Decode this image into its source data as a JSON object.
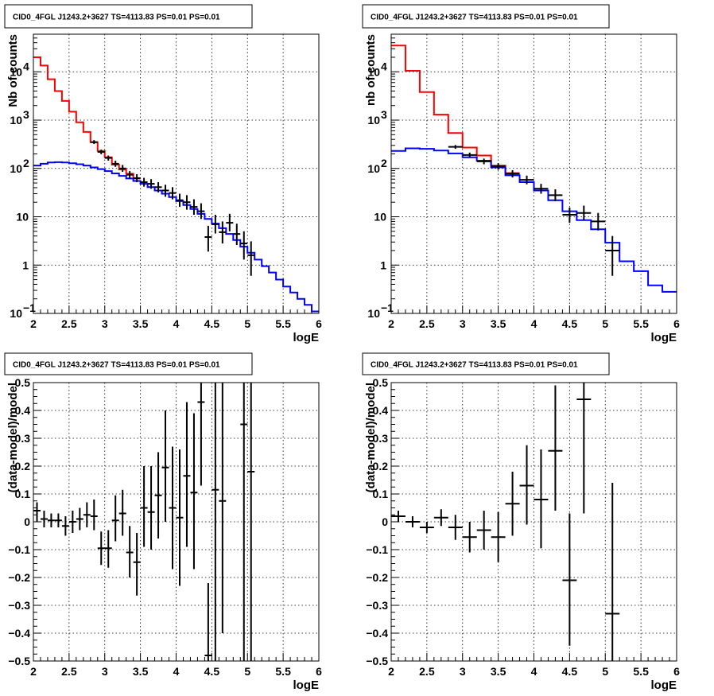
{
  "chart_data": [
    {
      "type": "line",
      "title": "CID0_4FGL J1243.2+3627 TS=4113.83 PS=0.01 PS=0.01",
      "xlabel": "logE",
      "ylabel": "Nb of counts",
      "xlim": [
        2,
        6
      ],
      "ylim": [
        0.1,
        60000
      ],
      "yscale": "log",
      "grid": true,
      "x_ticks": [
        "2",
        "2.5",
        "3",
        "3.5",
        "4",
        "4.5",
        "5",
        "5.5",
        "6"
      ],
      "y_ticks": [
        {
          "value": 0.1,
          "label": "10",
          "exp": "−1"
        },
        {
          "value": 1,
          "label": "1",
          "exp": ""
        },
        {
          "value": 10,
          "label": "10",
          "exp": ""
        },
        {
          "value": 100,
          "label": "10",
          "exp": "2"
        },
        {
          "value": 1000,
          "label": "10",
          "exp": "3"
        },
        {
          "value": 10000,
          "label": "10",
          "exp": "4"
        }
      ],
      "bin_edges": [
        2.0,
        2.1,
        2.2,
        2.3,
        2.4,
        2.5,
        2.6,
        2.7,
        2.8,
        2.9,
        3.0,
        3.1,
        3.2,
        3.3,
        3.4,
        3.5,
        3.6,
        3.7,
        3.8,
        3.9,
        4.0,
        4.1,
        4.2,
        4.3,
        4.4,
        4.5,
        4.6,
        4.7,
        4.8,
        4.9,
        5.0,
        5.1,
        5.2,
        5.3,
        5.4,
        5.5,
        5.6,
        5.7,
        5.8,
        5.9,
        6.0
      ],
      "series": [
        {
          "color": "#ff0000",
          "style": "step",
          "x_end": 3.5,
          "values": [
            20000,
            13500,
            7000,
            4000,
            2500,
            1500,
            900,
            570,
            350,
            230,
            170,
            120,
            95,
            78,
            62
          ]
        },
        {
          "color": "#0000ff",
          "style": "step",
          "values": [
            115,
            125,
            133,
            135,
            133,
            128,
            122,
            115,
            105,
            97,
            88,
            79,
            70,
            62,
            55,
            48,
            41,
            35,
            30,
            25.5,
            21,
            17.5,
            14.5,
            11.5,
            9,
            7.2,
            5.8,
            4.4,
            3.3,
            2.4,
            1.8,
            1.3,
            0.95,
            0.7,
            0.5,
            0.36,
            0.27,
            0.2,
            0.15,
            0.11
          ]
        },
        {
          "color": "#000000",
          "style": "points",
          "points": [
            {
              "x": 2.85,
              "y": 350,
              "lo": 320,
              "hi": 385
            },
            {
              "x": 2.95,
              "y": 220,
              "lo": 197,
              "hi": 245
            },
            {
              "x": 3.05,
              "y": 165,
              "lo": 145,
              "hi": 185
            },
            {
              "x": 3.15,
              "y": 125,
              "lo": 108,
              "hi": 145
            },
            {
              "x": 3.25,
              "y": 100,
              "lo": 85,
              "hi": 118
            },
            {
              "x": 3.35,
              "y": 74,
              "lo": 62,
              "hi": 88
            },
            {
              "x": 3.45,
              "y": 63,
              "lo": 52,
              "hi": 76
            },
            {
              "x": 3.55,
              "y": 52,
              "lo": 42,
              "hi": 64
            },
            {
              "x": 3.65,
              "y": 48,
              "lo": 38,
              "hi": 60
            },
            {
              "x": 3.75,
              "y": 41,
              "lo": 32,
              "hi": 52
            },
            {
              "x": 3.85,
              "y": 35,
              "lo": 26,
              "hi": 46
            },
            {
              "x": 3.95,
              "y": 31,
              "lo": 23,
              "hi": 41
            },
            {
              "x": 4.05,
              "y": 22,
              "lo": 16,
              "hi": 30
            },
            {
              "x": 4.15,
              "y": 20,
              "lo": 14,
              "hi": 28
            },
            {
              "x": 4.25,
              "y": 16,
              "lo": 11,
              "hi": 23
            },
            {
              "x": 4.35,
              "y": 13,
              "lo": 9,
              "hi": 19
            },
            {
              "x": 4.45,
              "y": 3.8,
              "lo": 1.9,
              "hi": 6.5
            },
            {
              "x": 4.55,
              "y": 7,
              "lo": 4.5,
              "hi": 11
            },
            {
              "x": 4.65,
              "y": 4.8,
              "lo": 2.8,
              "hi": 8
            },
            {
              "x": 4.75,
              "y": 7.5,
              "lo": 5,
              "hi": 11.5
            },
            {
              "x": 4.85,
              "y": 4.4,
              "lo": 2.6,
              "hi": 7.2
            },
            {
              "x": 4.95,
              "y": 2.8,
              "lo": 1.3,
              "hi": 5
            },
            {
              "x": 5.05,
              "y": 1.6,
              "lo": 0.6,
              "hi": 3.1
            }
          ]
        }
      ]
    },
    {
      "type": "line",
      "title": "CID0_4FGL J1243.2+3627 TS=4113.83 PS=0.01 PS=0.01",
      "xlabel": "logE",
      "ylabel": "nb of counts",
      "xlim": [
        2,
        6
      ],
      "ylim": [
        0.1,
        60000
      ],
      "yscale": "log",
      "grid": true,
      "x_ticks": [
        "2",
        "2.5",
        "3",
        "3.5",
        "4",
        "4.5",
        "5",
        "5.5",
        "6"
      ],
      "y_ticks": [
        {
          "value": 0.1,
          "label": "10",
          "exp": "−1"
        },
        {
          "value": 1,
          "label": "1",
          "exp": ""
        },
        {
          "value": 10,
          "label": "10",
          "exp": ""
        },
        {
          "value": 100,
          "label": "10",
          "exp": "2"
        },
        {
          "value": 1000,
          "label": "10",
          "exp": "3"
        },
        {
          "value": 10000,
          "label": "10",
          "exp": "4"
        }
      ],
      "bin_edges": [
        2.0,
        2.2,
        2.4,
        2.6,
        2.8,
        3.0,
        3.2,
        3.4,
        3.6,
        3.8,
        4.0,
        4.2,
        4.4,
        4.6,
        4.8,
        5.0,
        5.2,
        5.4,
        5.6,
        5.8,
        6.0
      ],
      "series": [
        {
          "color": "#ff0000",
          "style": "step",
          "x_end": 3.8,
          "values": [
            35000,
            10500,
            3800,
            1300,
            540,
            270,
            185,
            115,
            80
          ]
        },
        {
          "color": "#0000ff",
          "style": "step",
          "values": [
            230,
            260,
            255,
            235,
            205,
            170,
            145,
            105,
            72,
            52,
            35,
            22,
            13,
            8.5,
            5.5,
            2.9,
            1.2,
            0.75,
            0.38,
            0.28
          ]
        },
        {
          "color": "#000000",
          "style": "points",
          "points": [
            {
              "x": 2.9,
              "y": 280,
              "lo": 255,
              "hi": 305
            },
            {
              "x": 3.1,
              "y": 190,
              "lo": 168,
              "hi": 213
            },
            {
              "x": 3.3,
              "y": 140,
              "lo": 122,
              "hi": 160
            },
            {
              "x": 3.5,
              "y": 110,
              "lo": 94,
              "hi": 128
            },
            {
              "x": 3.7,
              "y": 78,
              "lo": 65,
              "hi": 92
            },
            {
              "x": 3.9,
              "y": 58,
              "lo": 47,
              "hi": 71
            },
            {
              "x": 4.1,
              "y": 38,
              "lo": 30,
              "hi": 48
            },
            {
              "x": 4.3,
              "y": 28,
              "lo": 21,
              "hi": 37
            },
            {
              "x": 4.5,
              "y": 11,
              "lo": 7.5,
              "hi": 15.5
            },
            {
              "x": 4.7,
              "y": 12,
              "lo": 8.5,
              "hi": 17
            },
            {
              "x": 4.9,
              "y": 8,
              "lo": 5.2,
              "hi": 12
            },
            {
              "x": 5.1,
              "y": 2,
              "lo": 0.6,
              "hi": 4
            }
          ]
        }
      ]
    },
    {
      "type": "scatter",
      "title": "CID0_4FGL J1243.2+3627 TS=4113.83 PS=0.01 PS=0.01",
      "xlabel": "logE",
      "ylabel": "(data-model)/model",
      "xlim": [
        2,
        6
      ],
      "ylim": [
        -0.5,
        0.5
      ],
      "grid": true,
      "x_ticks": [
        "2",
        "2.5",
        "3",
        "3.5",
        "4",
        "4.5",
        "5",
        "5.5",
        "6"
      ],
      "y_ticks": [
        "−0.5",
        "−0.4",
        "−0.3",
        "−0.2",
        "−0.1",
        "0",
        "0.1",
        "0.2",
        "0.3",
        "0.4",
        "0.5"
      ],
      "y_tick_values": [
        -0.5,
        -0.4,
        -0.3,
        -0.2,
        -0.1,
        0,
        0.1,
        0.2,
        0.3,
        0.4,
        0.5
      ],
      "bin_halfwidth": 0.05,
      "points": [
        {
          "x": 2.05,
          "y": 0.04,
          "lo": 0.0,
          "hi": 0.07
        },
        {
          "x": 2.15,
          "y": 0.01,
          "lo": -0.02,
          "hi": 0.04
        },
        {
          "x": 2.25,
          "y": 0.005,
          "lo": -0.02,
          "hi": 0.03
        },
        {
          "x": 2.35,
          "y": 0.005,
          "lo": -0.02,
          "hi": 0.03
        },
        {
          "x": 2.45,
          "y": -0.015,
          "lo": -0.05,
          "hi": 0.02
        },
        {
          "x": 2.55,
          "y": 0.0,
          "lo": -0.04,
          "hi": 0.04
        },
        {
          "x": 2.65,
          "y": 0.01,
          "lo": -0.03,
          "hi": 0.05
        },
        {
          "x": 2.75,
          "y": 0.025,
          "lo": -0.02,
          "hi": 0.07
        },
        {
          "x": 2.85,
          "y": 0.02,
          "lo": -0.03,
          "hi": 0.08
        },
        {
          "x": 2.95,
          "y": -0.095,
          "lo": -0.155,
          "hi": -0.035
        },
        {
          "x": 3.05,
          "y": -0.095,
          "lo": -0.165,
          "hi": -0.03
        },
        {
          "x": 3.15,
          "y": 0.005,
          "lo": -0.07,
          "hi": 0.095
        },
        {
          "x": 3.25,
          "y": 0.03,
          "lo": -0.05,
          "hi": 0.115
        },
        {
          "x": 3.35,
          "y": -0.11,
          "lo": -0.2,
          "hi": -0.015
        },
        {
          "x": 3.45,
          "y": -0.145,
          "lo": -0.265,
          "hi": -0.04
        },
        {
          "x": 3.55,
          "y": 0.05,
          "lo": -0.09,
          "hi": 0.2
        },
        {
          "x": 3.65,
          "y": 0.035,
          "lo": -0.1,
          "hi": 0.2
        },
        {
          "x": 3.75,
          "y": 0.095,
          "lo": -0.06,
          "hi": 0.25
        },
        {
          "x": 3.85,
          "y": 0.195,
          "lo": 0.0,
          "hi": 0.4
        },
        {
          "x": 3.95,
          "y": 0.05,
          "lo": -0.17,
          "hi": 0.27
        },
        {
          "x": 4.05,
          "y": 0.015,
          "lo": -0.23,
          "hi": 0.26
        },
        {
          "x": 4.15,
          "y": 0.165,
          "lo": -0.09,
          "hi": 0.43
        },
        {
          "x": 4.25,
          "y": 0.105,
          "lo": -0.17,
          "hi": 0.39
        },
        {
          "x": 4.35,
          "y": 0.43,
          "lo": 0.13,
          "hi": 0.5
        },
        {
          "x": 4.45,
          "y": -0.48,
          "lo": -0.5,
          "hi": -0.22
        },
        {
          "x": 4.55,
          "y": 0.115,
          "lo": -0.5,
          "hi": 0.5
        },
        {
          "x": 4.65,
          "y": 0.075,
          "lo": -0.4,
          "hi": 0.5
        },
        {
          "x": 4.95,
          "y": 0.35,
          "lo": -0.5,
          "hi": 0.5
        },
        {
          "x": 5.05,
          "y": 0.18,
          "lo": -0.5,
          "hi": 0.5
        }
      ]
    },
    {
      "type": "scatter",
      "title": "CID0_4FGL J1243.2+3627 TS=4113.83 PS=0.01 PS=0.01",
      "xlabel": "logE",
      "ylabel": "(data-model)/model",
      "xlim": [
        2,
        6
      ],
      "ylim": [
        -0.5,
        0.5
      ],
      "grid": true,
      "x_ticks": [
        "2",
        "2.5",
        "3",
        "3.5",
        "4",
        "4.5",
        "5",
        "5.5",
        "6"
      ],
      "y_ticks": [
        "−0.5",
        "−0.4",
        "−0.3",
        "−0.2",
        "−0.1",
        "0",
        "0.1",
        "0.2",
        "0.3",
        "0.4",
        "0.5"
      ],
      "y_tick_values": [
        -0.5,
        -0.4,
        -0.3,
        -0.2,
        -0.1,
        0,
        0.1,
        0.2,
        0.3,
        0.4,
        0.5
      ],
      "bin_halfwidth": 0.1,
      "points": [
        {
          "x": 2.1,
          "y": 0.02,
          "lo": 0.0,
          "hi": 0.04
        },
        {
          "x": 2.3,
          "y": 0.0,
          "lo": -0.02,
          "hi": 0.02
        },
        {
          "x": 2.5,
          "y": -0.02,
          "lo": -0.04,
          "hi": 0.0
        },
        {
          "x": 2.7,
          "y": 0.015,
          "lo": -0.015,
          "hi": 0.045
        },
        {
          "x": 2.9,
          "y": -0.02,
          "lo": -0.065,
          "hi": 0.025
        },
        {
          "x": 3.1,
          "y": -0.055,
          "lo": -0.11,
          "hi": 0.0
        },
        {
          "x": 3.3,
          "y": -0.03,
          "lo": -0.1,
          "hi": 0.04
        },
        {
          "x": 3.5,
          "y": -0.055,
          "lo": -0.145,
          "hi": 0.035
        },
        {
          "x": 3.7,
          "y": 0.065,
          "lo": -0.05,
          "hi": 0.18
        },
        {
          "x": 3.9,
          "y": 0.13,
          "lo": -0.01,
          "hi": 0.275
        },
        {
          "x": 4.1,
          "y": 0.08,
          "lo": -0.095,
          "hi": 0.26
        },
        {
          "x": 4.3,
          "y": 0.255,
          "lo": 0.04,
          "hi": 0.49
        },
        {
          "x": 4.5,
          "y": -0.21,
          "lo": -0.445,
          "hi": 0.03
        },
        {
          "x": 4.7,
          "y": 0.44,
          "lo": 0.03,
          "hi": 0.5
        },
        {
          "x": 5.1,
          "y": -0.33,
          "lo": -0.5,
          "hi": 0.14
        }
      ]
    }
  ]
}
